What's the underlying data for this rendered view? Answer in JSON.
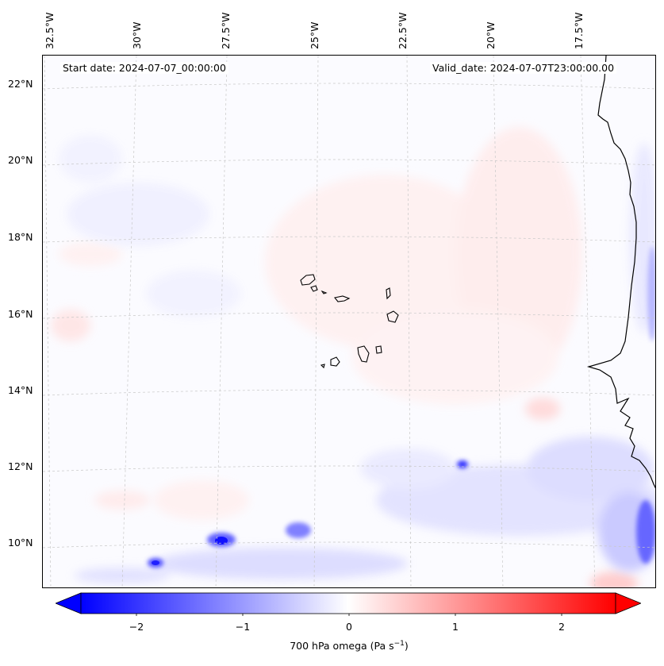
{
  "map": {
    "start_date": "Start date: 2024-07-07_00:00:00",
    "valid_date": "Valid_date: 2024-07-07T23:00:00.00",
    "lon_labels": [
      "32.5°W",
      "30°W",
      "27.5°W",
      "25°W",
      "22.5°W",
      "20°W",
      "17.5°W"
    ],
    "lat_labels": [
      "22°N",
      "20°N",
      "18°N",
      "16°N",
      "14°N",
      "12°N",
      "10°N"
    ],
    "field": "700 hPa omega"
  },
  "colorbar": {
    "label_main": "700 hPa omega (Pa s",
    "label_exp": "−1",
    "label_close": ")",
    "ticks": [
      "−2",
      "−1",
      "0",
      "1",
      "2"
    ],
    "range": [
      -2.7,
      2.7
    ],
    "negative_color": "#0000ff",
    "positive_color": "#ff0000",
    "extend": "both"
  }
}
